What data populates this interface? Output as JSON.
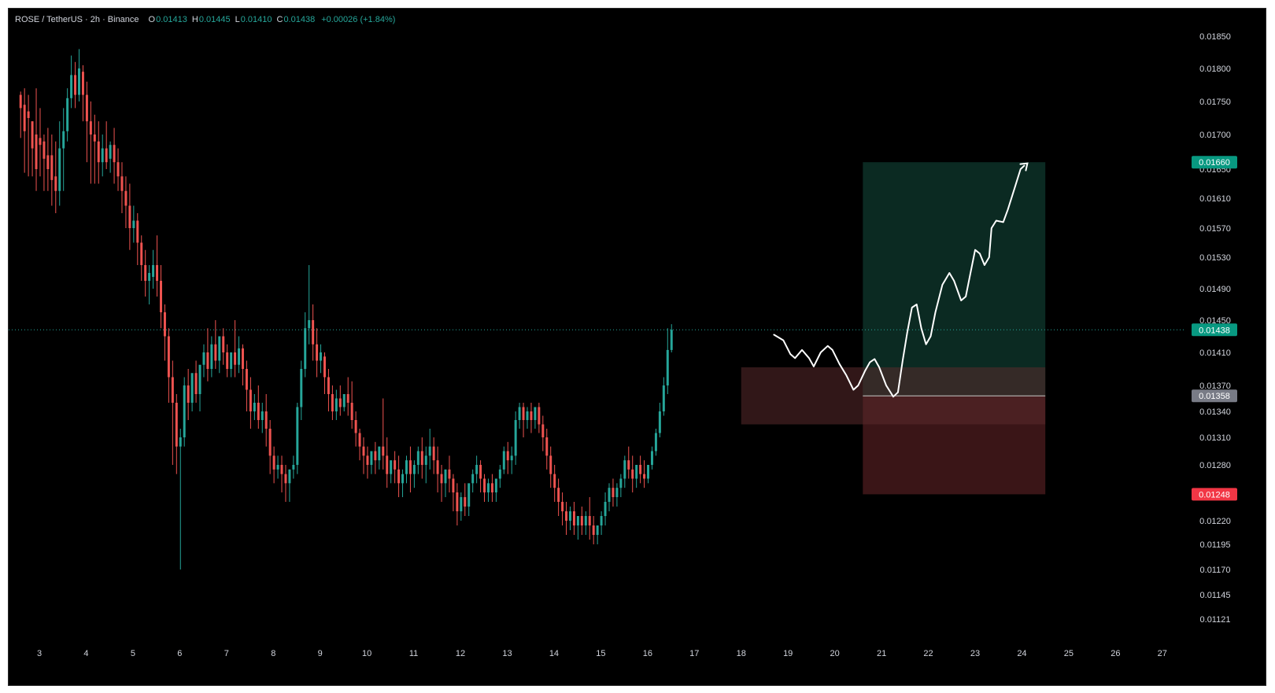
{
  "header": {
    "symbol": "ROSE / TetherUS · 2h · Binance",
    "open_label": "O",
    "open": "0.01413",
    "high_label": "H",
    "high": "0.01445",
    "low_label": "L",
    "low": "0.01410",
    "close_label": "C",
    "close": "0.01438",
    "change": "+0.00026 (+1.84%)"
  },
  "colors": {
    "background": "#000000",
    "up": "#26a69a",
    "down": "#ef5350",
    "target_zone": "#0b2a22",
    "stop_zone": "#3a1517",
    "demand_zone": "#4a1a1c",
    "axis_text": "#d1d4dc"
  },
  "chart_data": {
    "type": "candlestick",
    "price_axis_ticks": [
      "0.01850",
      "0.01800",
      "0.01750",
      "0.01700",
      "0.01650",
      "0.01610",
      "0.01570",
      "0.01530",
      "0.01490",
      "0.01450",
      "0.01410",
      "0.01370",
      "0.01340",
      "0.01310",
      "0.01280",
      "0.01250",
      "0.01220",
      "0.01195",
      "0.01170",
      "0.01145",
      "0.01121"
    ],
    "time_axis_ticks": [
      "3",
      "4",
      "5",
      "6",
      "7",
      "8",
      "9",
      "10",
      "11",
      "12",
      "13",
      "14",
      "15",
      "16",
      "17",
      "18",
      "19",
      "20",
      "21",
      "22",
      "23",
      "24",
      "25",
      "26",
      "27"
    ],
    "last_price": "0.01438",
    "position": {
      "entry": "0.01358",
      "target": "0.01660",
      "stop": "0.01248",
      "start_day": 20.6,
      "end_day": 24.5
    },
    "demand_zone": {
      "top": 0.01392,
      "bottom": 0.01325,
      "start_day": 18.0,
      "end_day": 24.5
    },
    "candles_from_day": 2.6,
    "candle_step_days": 0.0833,
    "candles": [
      [
        0.01765,
        0.0176,
        0.0174,
        0.01695
      ],
      [
        0.0177,
        0.01745,
        0.01705,
        0.01645
      ],
      [
        0.0176,
        0.01735,
        0.01725,
        0.0164
      ],
      [
        0.0172,
        0.0172,
        0.0168,
        0.0164
      ],
      [
        0.0177,
        0.017,
        0.0165,
        0.0162
      ],
      [
        0.0174,
        0.01695,
        0.01685,
        0.0164
      ],
      [
        0.017,
        0.0169,
        0.01665,
        0.0162
      ],
      [
        0.0171,
        0.0167,
        0.0165,
        0.0162
      ],
      [
        0.017,
        0.0167,
        0.01635,
        0.016
      ],
      [
        0.0169,
        0.0164,
        0.0162,
        0.0159
      ],
      [
        0.0172,
        0.0162,
        0.0168,
        0.016
      ],
      [
        0.0174,
        0.0168,
        0.01705,
        0.0162
      ],
      [
        0.0177,
        0.01705,
        0.01755,
        0.0169
      ],
      [
        0.0182,
        0.01755,
        0.0179,
        0.0174
      ],
      [
        0.0181,
        0.0179,
        0.0176,
        0.0174
      ],
      [
        0.0183,
        0.0176,
        0.018,
        0.0175
      ],
      [
        0.01805,
        0.01795,
        0.0176,
        0.0172
      ],
      [
        0.0178,
        0.0176,
        0.0172,
        0.0166
      ],
      [
        0.0175,
        0.0172,
        0.017,
        0.0163
      ],
      [
        0.0173,
        0.017,
        0.0169,
        0.0163
      ],
      [
        0.0172,
        0.0169,
        0.0166,
        0.0163
      ],
      [
        0.017,
        0.0166,
        0.0168,
        0.0164
      ],
      [
        0.0172,
        0.0168,
        0.0166,
        0.0165
      ],
      [
        0.0169,
        0.01665,
        0.01685,
        0.01645
      ],
      [
        0.0171,
        0.01685,
        0.0166,
        0.0163
      ],
      [
        0.0168,
        0.0166,
        0.0164,
        0.0162
      ],
      [
        0.0166,
        0.0164,
        0.0162,
        0.0159
      ],
      [
        0.0164,
        0.0162,
        0.016,
        0.0157
      ],
      [
        0.0163,
        0.016,
        0.0157,
        0.0154
      ],
      [
        0.016,
        0.0157,
        0.0158,
        0.0155
      ],
      [
        0.0159,
        0.0158,
        0.0155,
        0.0152
      ],
      [
        0.0156,
        0.0155,
        0.0152,
        0.015
      ],
      [
        0.0154,
        0.0152,
        0.015,
        0.0148
      ],
      [
        0.0152,
        0.015,
        0.0151,
        0.0147
      ],
      [
        0.0154,
        0.01505,
        0.0152,
        0.0149
      ],
      [
        0.0156,
        0.0152,
        0.015,
        0.0148
      ],
      [
        0.0152,
        0.015,
        0.0146,
        0.0144
      ],
      [
        0.0147,
        0.0146,
        0.0143,
        0.014
      ],
      [
        0.0144,
        0.0143,
        0.0138,
        0.0135
      ],
      [
        0.014,
        0.0138,
        0.0135,
        0.0128
      ],
      [
        0.0136,
        0.0135,
        0.013,
        0.0127
      ],
      [
        0.0132,
        0.013,
        0.0131,
        0.0117
      ],
      [
        0.0138,
        0.0131,
        0.0137,
        0.013
      ],
      [
        0.0139,
        0.0137,
        0.0135,
        0.0133
      ],
      [
        0.0138,
        0.0135,
        0.01385,
        0.0134
      ],
      [
        0.014,
        0.01385,
        0.0136,
        0.0135
      ],
      [
        0.0139,
        0.0136,
        0.01395,
        0.0134
      ],
      [
        0.0142,
        0.01395,
        0.0141,
        0.0138
      ],
      [
        0.0144,
        0.0141,
        0.0139,
        0.01375
      ],
      [
        0.0143,
        0.0139,
        0.0142,
        0.0138
      ],
      [
        0.0145,
        0.0142,
        0.014,
        0.0139
      ],
      [
        0.0143,
        0.014,
        0.0143,
        0.01385
      ],
      [
        0.0144,
        0.0143,
        0.0141,
        0.01395
      ],
      [
        0.0142,
        0.0141,
        0.0139,
        0.0138
      ],
      [
        0.0141,
        0.0139,
        0.0141,
        0.0138
      ],
      [
        0.0145,
        0.0141,
        0.01395,
        0.0138
      ],
      [
        0.0143,
        0.01395,
        0.01415,
        0.01385
      ],
      [
        0.0142,
        0.01415,
        0.0139,
        0.0137
      ],
      [
        0.014,
        0.0139,
        0.01365,
        0.0134
      ],
      [
        0.0138,
        0.01365,
        0.0134,
        0.0132
      ],
      [
        0.0136,
        0.0134,
        0.0135,
        0.0133
      ],
      [
        0.0137,
        0.0135,
        0.0133,
        0.0132
      ],
      [
        0.0135,
        0.0133,
        0.0134,
        0.01315
      ],
      [
        0.0136,
        0.0134,
        0.0132,
        0.013
      ],
      [
        0.0133,
        0.0132,
        0.0129,
        0.0127
      ],
      [
        0.013,
        0.0129,
        0.01275,
        0.0126
      ],
      [
        0.0129,
        0.01275,
        0.0128,
        0.01265
      ],
      [
        0.0129,
        0.0128,
        0.0127,
        0.0125
      ],
      [
        0.0128,
        0.0127,
        0.0126,
        0.0124
      ],
      [
        0.01275,
        0.0126,
        0.01275,
        0.0124
      ],
      [
        0.0129,
        0.01275,
        0.0128,
        0.01265
      ],
      [
        0.0135,
        0.0128,
        0.01345,
        0.0127
      ],
      [
        0.014,
        0.01345,
        0.0139,
        0.0133
      ],
      [
        0.0146,
        0.0139,
        0.0144,
        0.0138
      ],
      [
        0.0152,
        0.0144,
        0.0145,
        0.0142
      ],
      [
        0.0147,
        0.0145,
        0.0142,
        0.014
      ],
      [
        0.0144,
        0.0142,
        0.014,
        0.0138
      ],
      [
        0.0142,
        0.014,
        0.0141,
        0.01385
      ],
      [
        0.0141,
        0.01405,
        0.0138,
        0.0136
      ],
      [
        0.0139,
        0.0138,
        0.0136,
        0.0134
      ],
      [
        0.0137,
        0.0136,
        0.0134,
        0.0133
      ],
      [
        0.01365,
        0.0134,
        0.01355,
        0.0133
      ],
      [
        0.0137,
        0.01355,
        0.01345,
        0.01335
      ],
      [
        0.0136,
        0.01345,
        0.0136,
        0.0134
      ],
      [
        0.0138,
        0.0136,
        0.0135,
        0.01335
      ],
      [
        0.01375,
        0.0135,
        0.0133,
        0.0132
      ],
      [
        0.0134,
        0.0133,
        0.01315,
        0.013
      ],
      [
        0.0132,
        0.01315,
        0.013,
        0.01285
      ],
      [
        0.0131,
        0.013,
        0.0129,
        0.0127
      ],
      [
        0.013,
        0.0129,
        0.0128,
        0.01265
      ],
      [
        0.01295,
        0.0128,
        0.01295,
        0.0127
      ],
      [
        0.01305,
        0.01295,
        0.01285,
        0.0127
      ],
      [
        0.013,
        0.01285,
        0.013,
        0.01275
      ],
      [
        0.01355,
        0.013,
        0.0129,
        0.01275
      ],
      [
        0.0131,
        0.0129,
        0.0127,
        0.01255
      ],
      [
        0.0128,
        0.0127,
        0.01285,
        0.0126
      ],
      [
        0.01295,
        0.01285,
        0.01275,
        0.0126
      ],
      [
        0.0129,
        0.01275,
        0.0126,
        0.01245
      ],
      [
        0.01275,
        0.0126,
        0.0127,
        0.01245
      ],
      [
        0.0129,
        0.0127,
        0.01285,
        0.0126
      ],
      [
        0.013,
        0.01285,
        0.0127,
        0.0125
      ],
      [
        0.01285,
        0.0127,
        0.0128,
        0.01255
      ],
      [
        0.013,
        0.0128,
        0.01295,
        0.0127
      ],
      [
        0.0131,
        0.01295,
        0.0128,
        0.01265
      ],
      [
        0.013,
        0.0128,
        0.0129,
        0.0126
      ],
      [
        0.0132,
        0.0129,
        0.013,
        0.01275
      ],
      [
        0.0131,
        0.013,
        0.01285,
        0.0127
      ],
      [
        0.013,
        0.01285,
        0.0127,
        0.0125
      ],
      [
        0.0128,
        0.0127,
        0.0126,
        0.0124
      ],
      [
        0.01275,
        0.0126,
        0.01275,
        0.01245
      ],
      [
        0.0129,
        0.01275,
        0.01265,
        0.0125
      ],
      [
        0.0127,
        0.01265,
        0.0125,
        0.0123
      ],
      [
        0.0126,
        0.0125,
        0.0123,
        0.01215
      ],
      [
        0.0125,
        0.0123,
        0.01245,
        0.0122
      ],
      [
        0.0126,
        0.01245,
        0.01235,
        0.01225
      ],
      [
        0.0125,
        0.01235,
        0.0126,
        0.01225
      ],
      [
        0.01275,
        0.0126,
        0.0127,
        0.0125
      ],
      [
        0.0129,
        0.0127,
        0.0128,
        0.0126
      ],
      [
        0.01285,
        0.0128,
        0.01265,
        0.0125
      ],
      [
        0.0127,
        0.01265,
        0.0125,
        0.0124
      ],
      [
        0.01265,
        0.0125,
        0.0126,
        0.0124
      ],
      [
        0.0127,
        0.0126,
        0.0125,
        0.0124
      ],
      [
        0.01265,
        0.0125,
        0.01265,
        0.0124
      ],
      [
        0.0128,
        0.01265,
        0.01275,
        0.01255
      ],
      [
        0.013,
        0.01275,
        0.01295,
        0.0127
      ],
      [
        0.01305,
        0.01295,
        0.01285,
        0.0127
      ],
      [
        0.013,
        0.01285,
        0.0129,
        0.0127
      ],
      [
        0.0134,
        0.0129,
        0.0133,
        0.0128
      ],
      [
        0.0135,
        0.0133,
        0.01345,
        0.0132
      ],
      [
        0.0135,
        0.01345,
        0.0133,
        0.0131
      ],
      [
        0.01345,
        0.0133,
        0.0134,
        0.0132
      ],
      [
        0.0135,
        0.0134,
        0.0133,
        0.01315
      ],
      [
        0.01345,
        0.0133,
        0.01345,
        0.0132
      ],
      [
        0.0135,
        0.01345,
        0.01325,
        0.01315
      ],
      [
        0.01335,
        0.01325,
        0.0131,
        0.01295
      ],
      [
        0.0132,
        0.0131,
        0.0129,
        0.01275
      ],
      [
        0.013,
        0.0129,
        0.0127,
        0.01255
      ],
      [
        0.0128,
        0.0127,
        0.01255,
        0.0124
      ],
      [
        0.01265,
        0.01255,
        0.0124,
        0.01225
      ],
      [
        0.0125,
        0.0124,
        0.0123,
        0.01215
      ],
      [
        0.0124,
        0.0123,
        0.0122,
        0.01205
      ],
      [
        0.01235,
        0.0122,
        0.0123,
        0.0121
      ],
      [
        0.0124,
        0.0123,
        0.01215,
        0.01205
      ],
      [
        0.01225,
        0.01215,
        0.01225,
        0.012
      ],
      [
        0.01235,
        0.01225,
        0.01215,
        0.01205
      ],
      [
        0.0123,
        0.01215,
        0.01225,
        0.01205
      ],
      [
        0.01245,
        0.01225,
        0.01215,
        0.012
      ],
      [
        0.01225,
        0.01215,
        0.01205,
        0.01195
      ],
      [
        0.01215,
        0.01205,
        0.01215,
        0.01195
      ],
      [
        0.0123,
        0.01215,
        0.01225,
        0.01205
      ],
      [
        0.0125,
        0.01225,
        0.0124,
        0.01215
      ],
      [
        0.0126,
        0.0124,
        0.01255,
        0.0123
      ],
      [
        0.01265,
        0.01255,
        0.01245,
        0.01235
      ],
      [
        0.0126,
        0.01245,
        0.01255,
        0.01235
      ],
      [
        0.0127,
        0.01255,
        0.01265,
        0.01245
      ],
      [
        0.0129,
        0.01265,
        0.01285,
        0.01255
      ],
      [
        0.013,
        0.01285,
        0.01275,
        0.01265
      ],
      [
        0.0129,
        0.01275,
        0.01265,
        0.0125
      ],
      [
        0.0128,
        0.01265,
        0.0128,
        0.01255
      ],
      [
        0.0129,
        0.0128,
        0.0127,
        0.0126
      ],
      [
        0.01285,
        0.0127,
        0.01265,
        0.01255
      ],
      [
        0.0128,
        0.01265,
        0.0128,
        0.0126
      ],
      [
        0.013,
        0.0128,
        0.01295,
        0.01275
      ],
      [
        0.0132,
        0.01295,
        0.01315,
        0.0129
      ],
      [
        0.0135,
        0.01315,
        0.0134,
        0.0131
      ],
      [
        0.0138,
        0.0134,
        0.0137,
        0.01335
      ],
      [
        0.0144,
        0.0137,
        0.01413,
        0.0136
      ],
      [
        0.01445,
        0.01413,
        0.01438,
        0.0141
      ]
    ],
    "projection": [
      [
        18.7,
        0.01432
      ],
      [
        18.9,
        0.01425
      ],
      [
        19.05,
        0.01408
      ],
      [
        19.15,
        0.01403
      ],
      [
        19.3,
        0.01413
      ],
      [
        19.45,
        0.01403
      ],
      [
        19.55,
        0.01393
      ],
      [
        19.7,
        0.0141
      ],
      [
        19.85,
        0.01418
      ],
      [
        19.95,
        0.01413
      ],
      [
        20.1,
        0.01396
      ],
      [
        20.25,
        0.01382
      ],
      [
        20.4,
        0.01365
      ],
      [
        20.5,
        0.0137
      ],
      [
        20.65,
        0.01388
      ],
      [
        20.75,
        0.01398
      ],
      [
        20.85,
        0.01402
      ],
      [
        20.95,
        0.01392
      ],
      [
        21.1,
        0.0137
      ],
      [
        21.25,
        0.01357
      ],
      [
        21.35,
        0.01362
      ],
      [
        21.45,
        0.014
      ],
      [
        21.55,
        0.01435
      ],
      [
        21.65,
        0.01466
      ],
      [
        21.75,
        0.0147
      ],
      [
        21.85,
        0.0144
      ],
      [
        21.95,
        0.0142
      ],
      [
        22.05,
        0.0143
      ],
      [
        22.15,
        0.0146
      ],
      [
        22.3,
        0.01495
      ],
      [
        22.45,
        0.0151
      ],
      [
        22.55,
        0.015
      ],
      [
        22.7,
        0.01475
      ],
      [
        22.8,
        0.0148
      ],
      [
        22.9,
        0.0151
      ],
      [
        23.0,
        0.0154
      ],
      [
        23.1,
        0.01535
      ],
      [
        23.2,
        0.0152
      ],
      [
        23.3,
        0.0153
      ],
      [
        23.35,
        0.0157
      ],
      [
        23.45,
        0.0158
      ],
      [
        23.6,
        0.01578
      ],
      [
        23.7,
        0.01595
      ],
      [
        23.85,
        0.01625
      ],
      [
        23.97,
        0.0165
      ],
      [
        24.05,
        0.01655
      ]
    ]
  }
}
